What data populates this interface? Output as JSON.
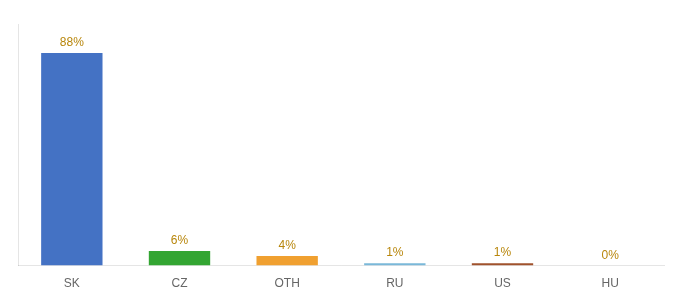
{
  "chart_data": {
    "type": "bar",
    "categories": [
      "SK",
      "CZ",
      "OTH",
      "RU",
      "US",
      "HU"
    ],
    "values": [
      88,
      6,
      4,
      1,
      1,
      0
    ],
    "value_labels": [
      "88%",
      "6%",
      "4%",
      "1%",
      "1%",
      "0%"
    ],
    "colors": [
      "#4472c4",
      "#33a532",
      "#f0a030",
      "#7ab8d9",
      "#a0522d",
      "#c0c0c0"
    ],
    "ylim": [
      0,
      100
    ],
    "grid": false,
    "data_labels": true,
    "tick_labels": "x"
  }
}
